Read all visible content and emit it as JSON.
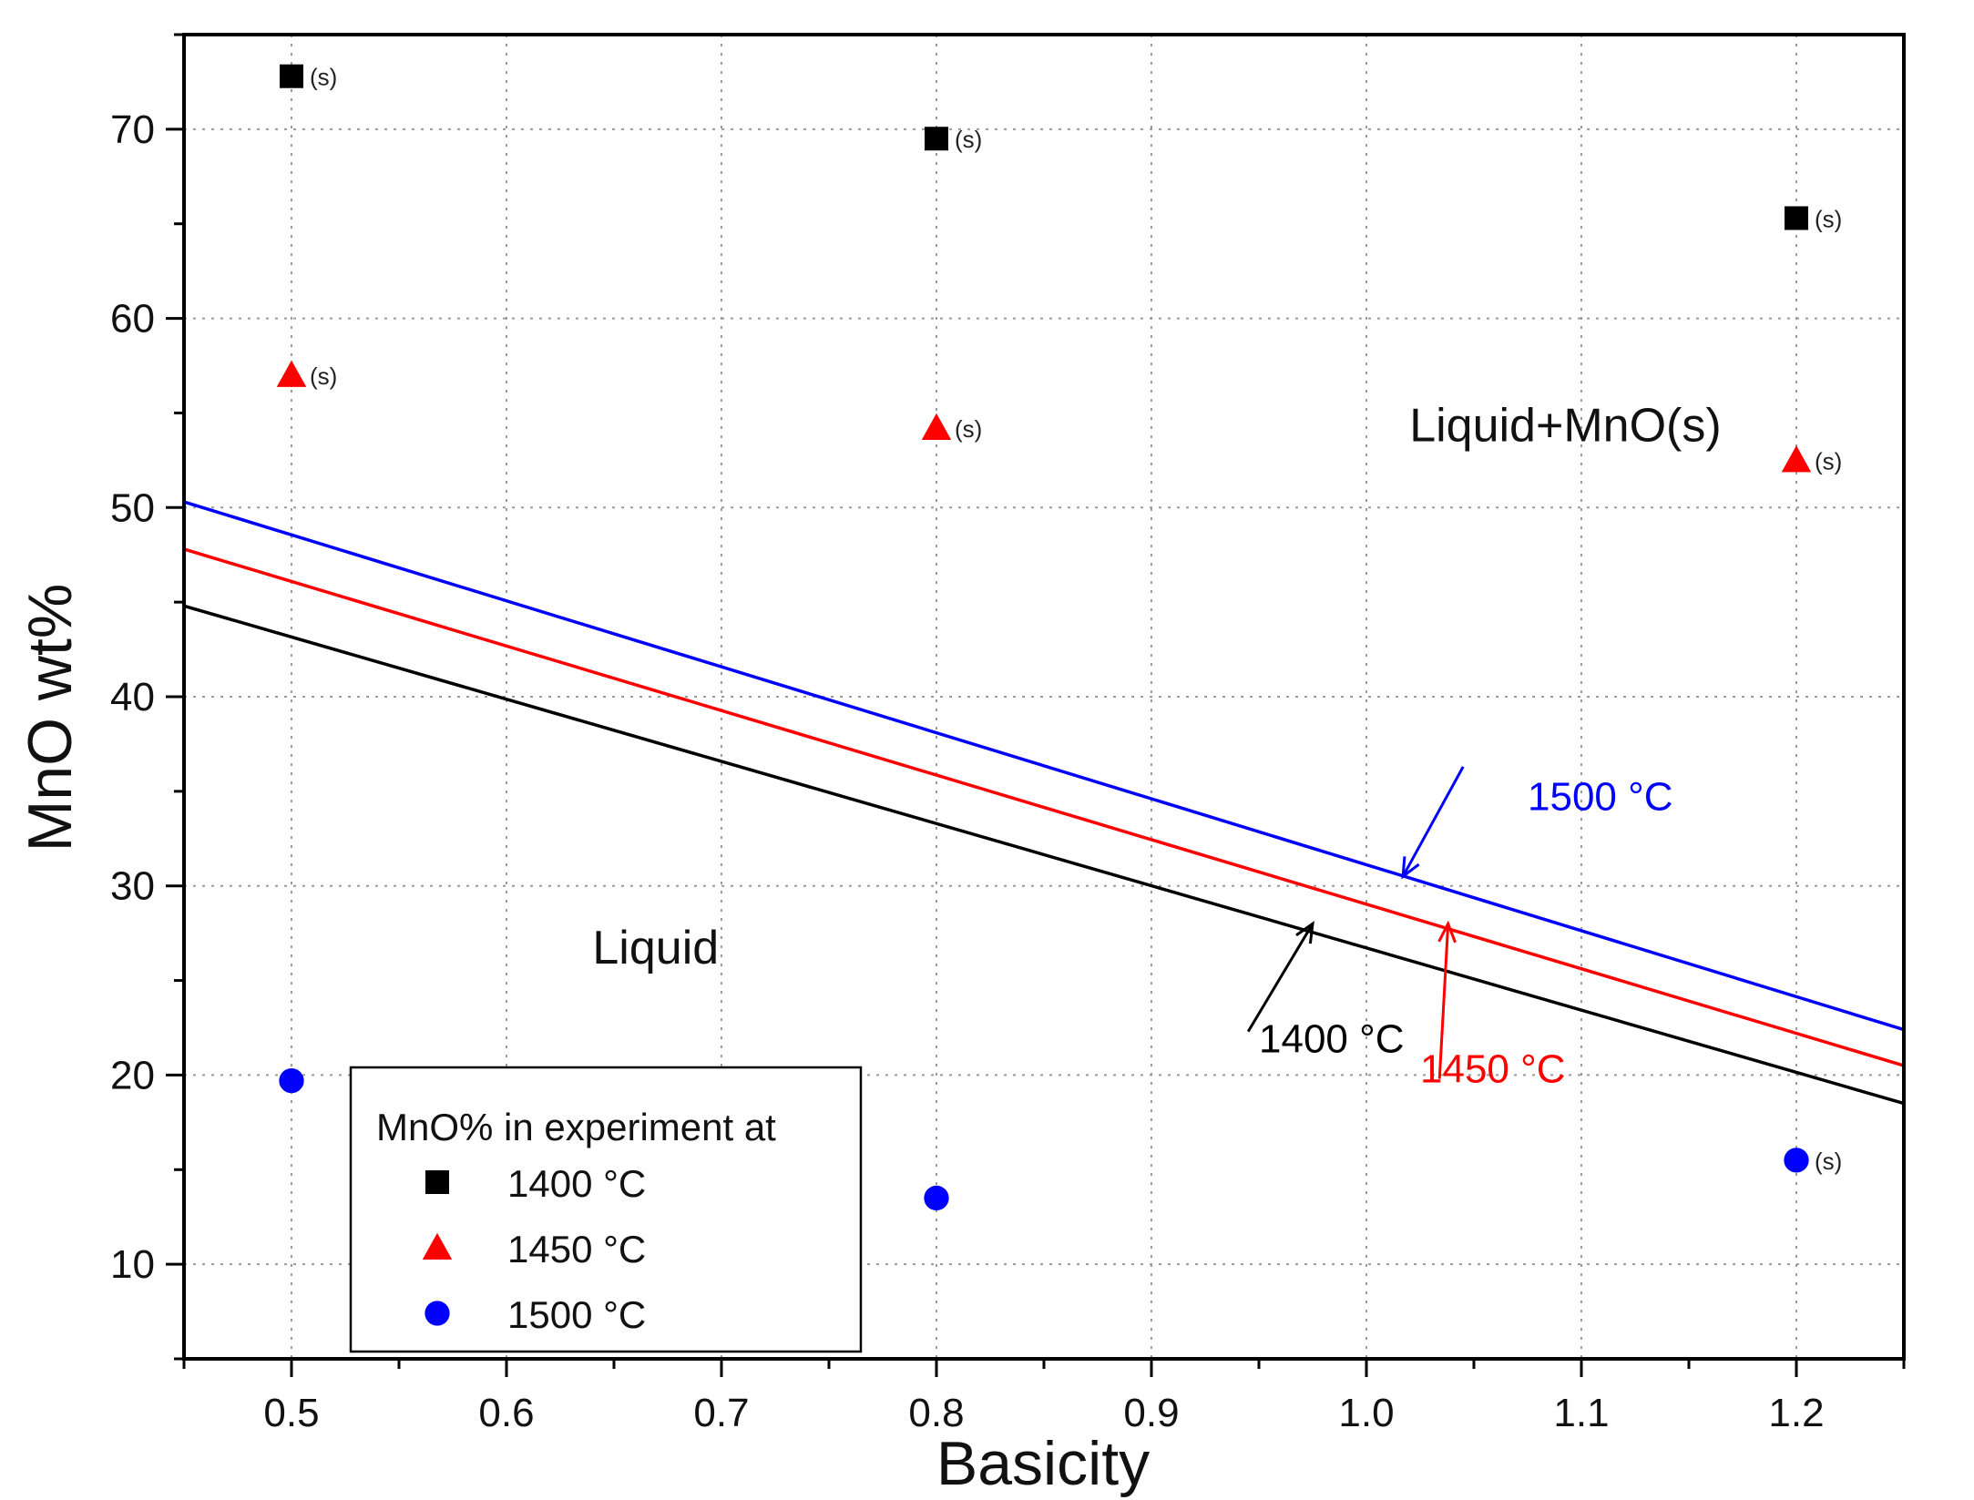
{
  "chart_data": {
    "type": "scatter",
    "title": "",
    "xlabel": "Basicity",
    "ylabel": "MnO wt%",
    "xlim": [
      0.45,
      1.25
    ],
    "ylim": [
      5,
      75
    ],
    "xticks": [
      0.5,
      0.6,
      0.7,
      0.8,
      0.9,
      1.0,
      1.1,
      1.2
    ],
    "xtick_labels": [
      "0.5",
      "0.6",
      "0.7",
      "0.8",
      "0.9",
      "1.0",
      "1.1",
      "1.2"
    ],
    "yticks": [
      10,
      20,
      30,
      40,
      50,
      60,
      70
    ],
    "ytick_labels": [
      "10",
      "20",
      "30",
      "40",
      "50",
      "60",
      "70"
    ],
    "grid": true,
    "regions": [
      {
        "label": "Liquid+MnO(s)",
        "x": 1.02,
        "y": 53.5
      },
      {
        "label": "Liquid",
        "x": 0.64,
        "y": 25.9
      }
    ],
    "lines": [
      {
        "name": "1400 °C",
        "color": "#000000",
        "x": [
          0.45,
          1.25
        ],
        "y": [
          44.8,
          18.5
        ],
        "label": "1400 °C",
        "label_color": "#000000",
        "label_pos": [
          0.95,
          21.2
        ],
        "arrow_to": [
          0.975,
          28.0
        ],
        "arrow_from": [
          0.945,
          22.3
        ]
      },
      {
        "name": "1450 °C",
        "color": "#ff0000",
        "x": [
          0.45,
          1.25
        ],
        "y": [
          47.8,
          20.5
        ],
        "label": "1450 °C",
        "label_color": "#ff0000",
        "label_pos": [
          1.025,
          19.6
        ],
        "arrow_to": [
          1.038,
          28.0
        ],
        "arrow_from": [
          1.034,
          19.8
        ]
      },
      {
        "name": "1500 °C",
        "color": "#0000ff",
        "x": [
          0.45,
          1.25
        ],
        "y": [
          50.3,
          22.4
        ],
        "label": "1500 °C",
        "label_color": "#0000ff",
        "label_pos": [
          1.075,
          34.0
        ],
        "arrow_to": [
          1.017,
          30.5
        ],
        "arrow_from": [
          1.045,
          36.3
        ]
      }
    ],
    "series": [
      {
        "name": "1400 °C",
        "marker": "square",
        "color": "#000000",
        "x": [
          0.5,
          0.8,
          1.2
        ],
        "y": [
          72.8,
          69.5,
          65.3
        ],
        "annotations": [
          "(s)",
          "(s)",
          "(s)"
        ]
      },
      {
        "name": "1450 °C",
        "marker": "triangle",
        "color": "#ff0000",
        "x": [
          0.5,
          0.8,
          1.2
        ],
        "y": [
          57.0,
          54.2,
          52.5
        ],
        "annotations": [
          "(s)",
          "(s)",
          "(s)"
        ]
      },
      {
        "name": "1500 °C",
        "marker": "circle",
        "color": "#0000ff",
        "x": [
          0.5,
          0.8,
          1.2
        ],
        "y": [
          19.7,
          13.5,
          15.5
        ],
        "annotations": [
          "",
          "",
          "(s)"
        ]
      }
    ],
    "legend": {
      "title": "MnO% in experiment at",
      "placement": "bottom-left",
      "entries": [
        "1400 °C",
        "1450 °C",
        "1500 °C"
      ]
    }
  }
}
